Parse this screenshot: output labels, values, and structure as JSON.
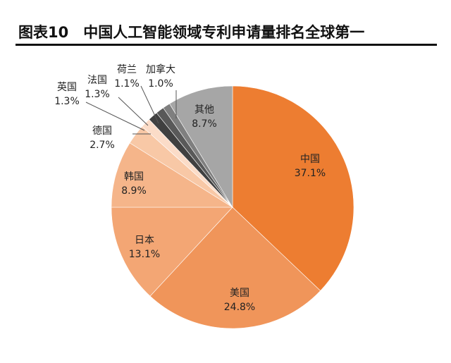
{
  "chart_data": {
    "type": "pie",
    "title": "图表10　中国人工智能领域专利申请量排名全球第一",
    "start": "top",
    "direction": "clockwise",
    "slices": [
      {
        "label": "中国",
        "value": 37.1,
        "text": "37.1%",
        "color": "#ED7D31"
      },
      {
        "label": "美国",
        "value": 24.8,
        "text": "24.8%",
        "color": "#F0955A"
      },
      {
        "label": "日本",
        "value": 13.1,
        "text": "13.1%",
        "color": "#F3A674"
      },
      {
        "label": "韩国",
        "value": 8.9,
        "text": "8.9%",
        "color": "#F5B58A"
      },
      {
        "label": "德国",
        "value": 2.7,
        "text": "2.7%",
        "color": "#F8C8A6"
      },
      {
        "label": "英国",
        "value": 1.3,
        "text": "1.3%",
        "color": "#FBDCC8"
      },
      {
        "label": "法国",
        "value": 1.3,
        "text": "1.3%",
        "color": "#404040"
      },
      {
        "label": "荷兰",
        "value": 1.1,
        "text": "1.1%",
        "color": "#595959"
      },
      {
        "label": "加拿大",
        "value": 1.0,
        "text": "1.0%",
        "color": "#7F7F7F"
      },
      {
        "label": "其他",
        "value": 8.7,
        "text": "8.7%",
        "color": "#A6A6A6"
      }
    ]
  }
}
